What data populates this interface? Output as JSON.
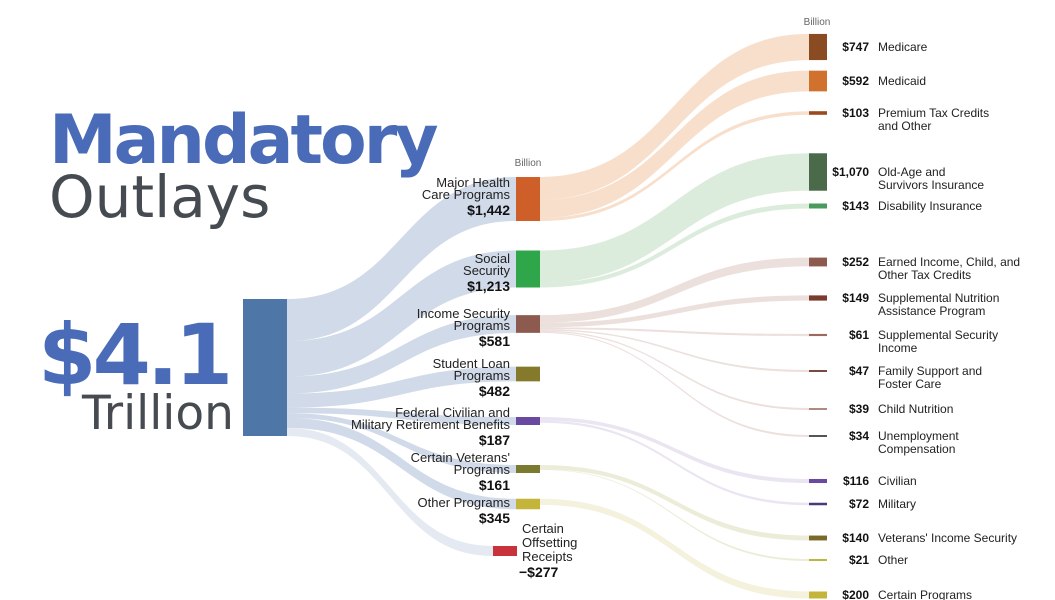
{
  "title": {
    "line1": "Mandatory",
    "line2": "Outlays"
  },
  "total": {
    "value": "$4.1",
    "unit": "Trillion"
  },
  "unit_labels": {
    "middle": "Billion",
    "right": "Billion"
  },
  "chart_data": {
    "type": "sankey",
    "title": "Mandatory Outlays",
    "total_label": "$4.1 Trillion",
    "units": "Billion",
    "root": {
      "name": "Mandatory Outlays",
      "value": 4100,
      "color": "#4e77a8"
    },
    "categories": [
      {
        "id": "health",
        "label_lines": [
          "Major Health",
          "Care Programs"
        ],
        "value": 1442,
        "value_label": "$1,442",
        "color": "#cf5f28",
        "flow_color": "#f3c4a3",
        "children": [
          {
            "label_lines": [
              "Medicare"
            ],
            "value": 747,
            "value_label": "$747",
            "color": "#8a4a22"
          },
          {
            "label_lines": [
              "Medicaid"
            ],
            "value": 592,
            "value_label": "$592",
            "color": "#d0712e"
          },
          {
            "label_lines": [
              "Premium Tax Credits",
              "and Other"
            ],
            "value": 103,
            "value_label": "$103",
            "color": "#9a4a1e"
          }
        ]
      },
      {
        "id": "social_security",
        "label_lines": [
          "Social",
          "Security"
        ],
        "value": 1213,
        "value_label": "$1,213",
        "color": "#2fa64a",
        "flow_color": "#bfdcc0",
        "children": [
          {
            "label_lines": [
              "Old-Age and",
              "Survivors Insurance"
            ],
            "value": 1070,
            "value_label": "$1,070",
            "color": "#4a6a4a"
          },
          {
            "label_lines": [
              "Disability Insurance"
            ],
            "value": 143,
            "value_label": "$143",
            "color": "#4a9a5e"
          }
        ]
      },
      {
        "id": "income_security",
        "label_lines": [
          "Income Security",
          "Programs"
        ],
        "value": 581,
        "value_label": "$581",
        "color": "#8c5a4e",
        "flow_color": "#dcc6c0",
        "children": [
          {
            "label_lines": [
              "Earned Income, Child, and",
              "Other Tax Credits"
            ],
            "value": 252,
            "value_label": "$252",
            "color": "#8c5a4e"
          },
          {
            "label_lines": [
              "Supplemental Nutrition",
              "Assistance Program"
            ],
            "value": 149,
            "value_label": "$149",
            "color": "#7a3a2e"
          },
          {
            "label_lines": [
              "Supplemental Security",
              "Income"
            ],
            "value": 61,
            "value_label": "$61",
            "color": "#9a6a5e"
          },
          {
            "label_lines": [
              "Family Support and",
              "Foster Care"
            ],
            "value": 47,
            "value_label": "$47",
            "color": "#7a4a40"
          },
          {
            "label_lines": [
              "Child Nutrition"
            ],
            "value": 39,
            "value_label": "$39",
            "color": "#b08a80"
          },
          {
            "label_lines": [
              "Unemployment",
              "Compensation"
            ],
            "value": 34,
            "value_label": "$34",
            "color": "#555555"
          }
        ]
      },
      {
        "id": "student_loan",
        "label_lines": [
          "Student Loan",
          "Programs"
        ],
        "value": 482,
        "value_label": "$482",
        "color": "#857a2c",
        "flow_color": "#dcd6b4",
        "children": []
      },
      {
        "id": "retirement",
        "label_lines": [
          "Federal Civilian and",
          "Military Retirement Benefits"
        ],
        "value": 187,
        "value_label": "$187",
        "color": "#6a4aa0",
        "flow_color": "#d8cfe6",
        "children": [
          {
            "label_lines": [
              "Civilian"
            ],
            "value": 116,
            "value_label": "$116",
            "color": "#6a4aa0"
          },
          {
            "label_lines": [
              "Military"
            ],
            "value": 72,
            "value_label": "$72",
            "color": "#4a3a78"
          }
        ]
      },
      {
        "id": "veterans",
        "label_lines": [
          "Certain Veterans'",
          "Programs"
        ],
        "value": 161,
        "value_label": "$161",
        "color": "#7a7a30",
        "flow_color": "#dcdcb8",
        "children": [
          {
            "label_lines": [
              "Veterans' Income Security"
            ],
            "value": 140,
            "value_label": "$140",
            "color": "#7a6a28"
          },
          {
            "label_lines": [
              "Other"
            ],
            "value": 21,
            "value_label": "$21",
            "color": "#b8b840"
          }
        ]
      },
      {
        "id": "other",
        "label_lines": [
          "Other Programs"
        ],
        "value": 345,
        "value_label": "$345",
        "color": "#c4b43a",
        "flow_color": "#ebe6c0",
        "children": [
          {
            "label_lines": [
              "Certain Programs"
            ],
            "value": 200,
            "value_label": "$200",
            "color": "#c4b43a"
          }
        ]
      }
    ],
    "offsetting": {
      "label_lines": [
        "Certain",
        "Offsetting",
        "Receipts"
      ],
      "value": -277,
      "value_label": "−$277",
      "color": "#c8323a",
      "flow_color": "#dfe5ef"
    }
  }
}
